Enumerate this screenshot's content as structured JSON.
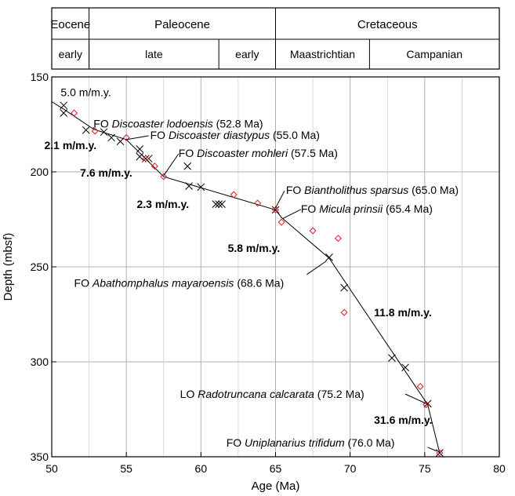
{
  "chart_data": {
    "type": "scatter",
    "xlabel": "Age (Ma)",
    "ylabel": "Depth (mbsf)",
    "xlim": [
      50,
      80
    ],
    "ylim": [
      350,
      150
    ],
    "y_inverted": true,
    "xticks": [
      50,
      55,
      60,
      65,
      70,
      75,
      80
    ],
    "yticks": [
      150,
      200,
      250,
      300,
      350
    ],
    "grid": true,
    "stratigraphy": {
      "epochs": [
        {
          "label": "Eocene",
          "from": 50,
          "to": 52.5
        },
        {
          "label": "Paleocene",
          "from": 52.5,
          "to": 65
        },
        {
          "label": "Cretaceous",
          "from": 65,
          "to": 80
        }
      ],
      "subdivisions": [
        {
          "label": "early",
          "from": 50,
          "to": 52.5
        },
        {
          "label": "late",
          "from": 52.5,
          "to": 61.2
        },
        {
          "label": "early",
          "from": 61.2,
          "to": 65
        },
        {
          "label": "Maastrichtian",
          "from": 65,
          "to": 71.3
        },
        {
          "label": "Campanian",
          "from": 71.3,
          "to": 80
        }
      ]
    },
    "series": [
      {
        "marker": "x",
        "color": "#000000",
        "points": [
          [
            50.8,
            165
          ],
          [
            50.8,
            169
          ],
          [
            52.3,
            178
          ],
          [
            53.5,
            179
          ],
          [
            54,
            182
          ],
          [
            54.6,
            184
          ],
          [
            55.9,
            188
          ],
          [
            55.9,
            192
          ],
          [
            56.3,
            193
          ],
          [
            56.5,
            193
          ],
          [
            59.1,
            197
          ],
          [
            59.2,
            207.5
          ],
          [
            60,
            208
          ],
          [
            61,
            217
          ],
          [
            61.2,
            217
          ],
          [
            61.4,
            217
          ],
          [
            65,
            220
          ],
          [
            68.6,
            245
          ],
          [
            69.6,
            261
          ],
          [
            72.8,
            298
          ],
          [
            73.7,
            303
          ],
          [
            75.2,
            322
          ],
          [
            76,
            348
          ]
        ]
      },
      {
        "marker": "diamond",
        "color": "#d42020",
        "points": [
          [
            51.5,
            169
          ],
          [
            52.9,
            178.5
          ],
          [
            55,
            182
          ],
          [
            56.3,
            193
          ],
          [
            56.9,
            197
          ],
          [
            57.5,
            202.5
          ],
          [
            62.2,
            212
          ],
          [
            63.8,
            216.5
          ],
          [
            65,
            220
          ],
          [
            65.4,
            226.5
          ],
          [
            67.5,
            231
          ],
          [
            69.2,
            235
          ],
          [
            69.6,
            274
          ],
          [
            74.7,
            313
          ],
          [
            75.1,
            322.5
          ],
          [
            76,
            348
          ]
        ]
      }
    ],
    "age_model_line": [
      [
        50,
        163
      ],
      [
        50.8,
        167
      ],
      [
        52.8,
        177.5
      ],
      [
        55,
        183
      ],
      [
        57.5,
        202.5
      ],
      [
        65,
        220
      ],
      [
        65.4,
        224
      ],
      [
        68.6,
        245.5
      ],
      [
        75.2,
        322.5
      ],
      [
        76,
        348
      ]
    ],
    "rate_labels": [
      {
        "text": "5.0 m/m.y.",
        "x": 50.6,
        "y": 158
      },
      {
        "text": "2.1 m/m.y.",
        "x": 49.5,
        "y": 186
      },
      {
        "text": "7.6 m/m.y.",
        "x": 51.9,
        "y": 200.5
      },
      {
        "text": "2.3 m/m.y.",
        "x": 55.7,
        "y": 217
      },
      {
        "text": "5.8 m/m.y.",
        "x": 61.8,
        "y": 240
      },
      {
        "text": "11.8 m/m.y.",
        "x": 71.6,
        "y": 274
      },
      {
        "text": "31.6 m/m.y.",
        "x": 71.6,
        "y": 330.5
      }
    ],
    "datum_annotations": [
      {
        "prefix": "FO ",
        "species": "Discoaster lodoensis",
        "age": " (52.8 Ma)",
        "x": 52.8,
        "y": 174.5,
        "from": [
          52.8,
          176.5
        ],
        "to": [
          52.8,
          177.5
        ]
      },
      {
        "prefix": "FO ",
        "species": "Discoaster diastypus",
        "age": " (55.0 Ma)",
        "x": 56.6,
        "y": 180.5,
        "from": [
          56.5,
          181
        ],
        "to": [
          55,
          183
        ]
      },
      {
        "prefix": "FO ",
        "species": "Discoaster mohleri",
        "age": " (57.5 Ma)",
        "x": 58.5,
        "y": 190,
        "from": [
          58.5,
          190.5
        ],
        "to": [
          57.5,
          202
        ]
      },
      {
        "prefix": "FO ",
        "species": "Biantholithus sparsus",
        "age": " (65.0 Ma)",
        "x": 65.7,
        "y": 209.5,
        "from": [
          65.6,
          210
        ],
        "to": [
          65,
          219
        ]
      },
      {
        "prefix": "FO ",
        "species": "Micula prinsii",
        "age": " (65.4 Ma)",
        "x": 66.7,
        "y": 219.5,
        "from": [
          66.7,
          219.8
        ],
        "to": [
          65.5,
          224.5
        ]
      },
      {
        "prefix": "FO ",
        "species": "Abathomphalus mayaroensis",
        "age": " (68.6 Ma)",
        "x": 51.5,
        "y": 258.5,
        "from": [
          67.1,
          254
        ],
        "to": [
          68.4,
          247
        ]
      },
      {
        "prefix": "LO ",
        "species": "Radotruncana calcarata",
        "age": " (75.2 Ma)",
        "x": 58.6,
        "y": 317,
        "from": [
          73.7,
          317
        ],
        "to": [
          75.1,
          322
        ]
      },
      {
        "prefix": "FO ",
        "species": "Uniplanarius trifidum",
        "age": " (76.0 Ma)",
        "x": 61.7,
        "y": 342.5,
        "from": [
          75.2,
          345
        ],
        "to": [
          75.8,
          347
        ]
      }
    ]
  }
}
